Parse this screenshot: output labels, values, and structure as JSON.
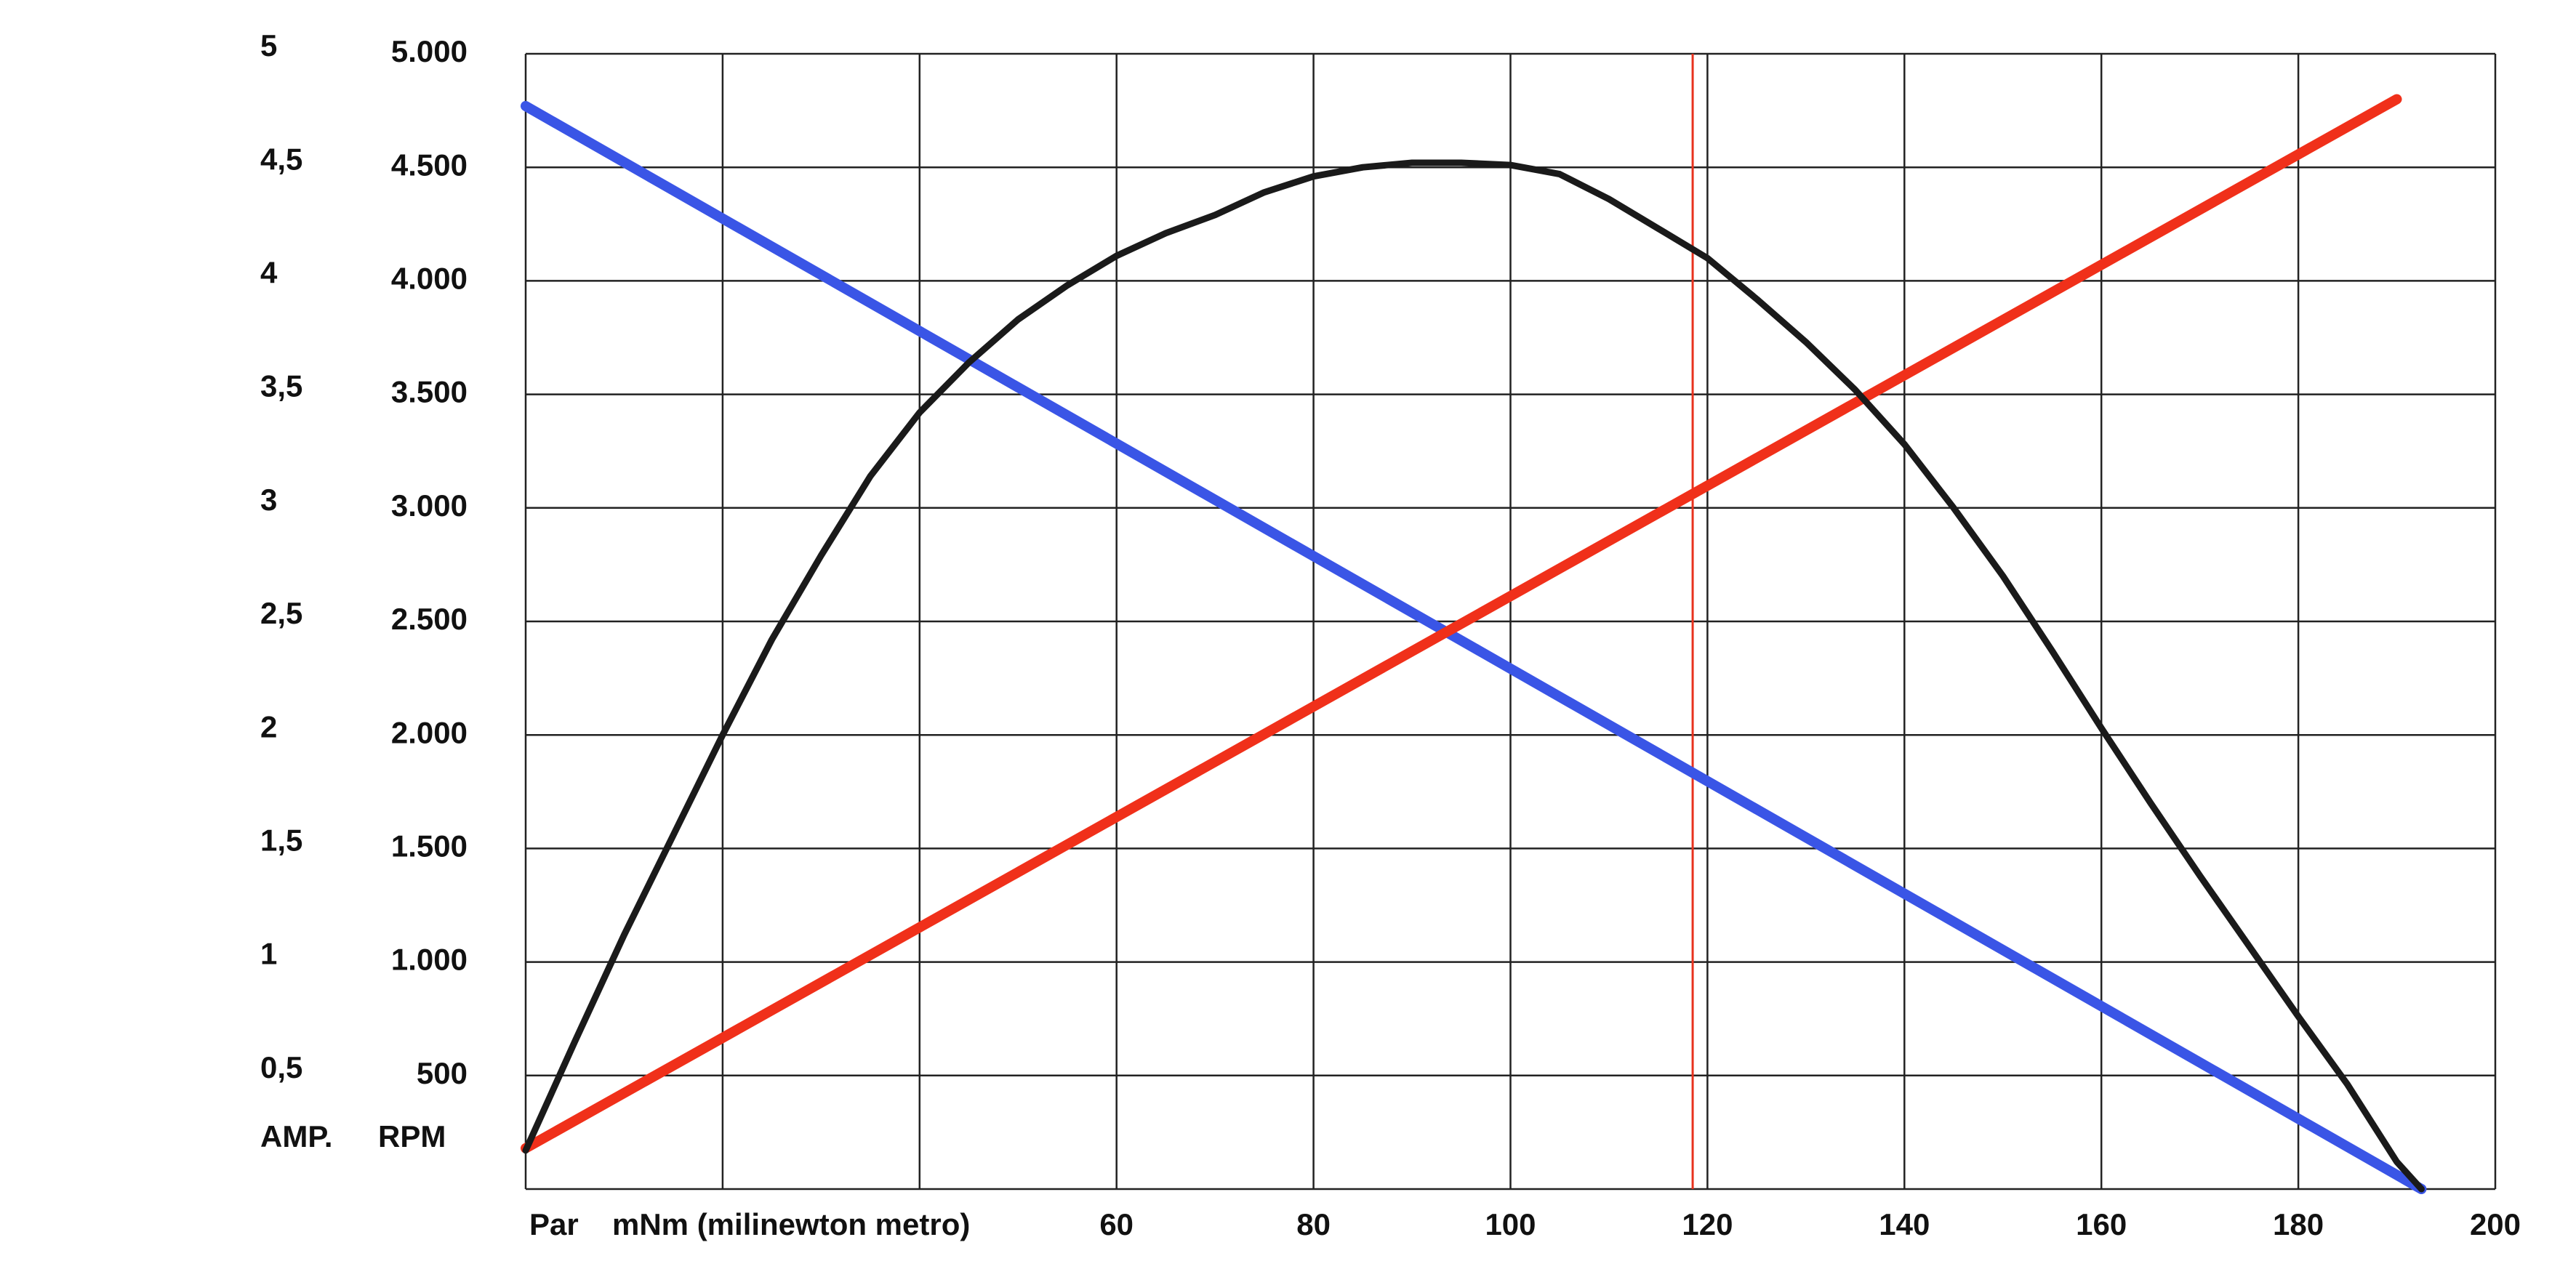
{
  "chart_data": {
    "type": "line",
    "title": "",
    "x_axis": {
      "unit_label": "Par",
      "label": "mNm (milinewton metro)",
      "min": 0,
      "max": 200,
      "gridlines": [
        0,
        20,
        40,
        60,
        80,
        100,
        120,
        140,
        160,
        180,
        200
      ],
      "tick_labels": [
        {
          "value": 60,
          "text": "60"
        },
        {
          "value": 80,
          "text": "80"
        },
        {
          "value": 100,
          "text": "100"
        },
        {
          "value": 120,
          "text": "120"
        },
        {
          "value": 140,
          "text": "140"
        },
        {
          "value": 160,
          "text": "160"
        },
        {
          "value": 180,
          "text": "180"
        },
        {
          "value": 200,
          "text": "200"
        }
      ]
    },
    "y_axis_amp": {
      "label": "AMP.",
      "min": 0,
      "max": 5,
      "tick_labels": [
        {
          "value": 0.5,
          "text": "0,5"
        },
        {
          "value": 1,
          "text": "1"
        },
        {
          "value": 1.5,
          "text": "1,5"
        },
        {
          "value": 2,
          "text": "2"
        },
        {
          "value": 2.5,
          "text": "2,5"
        },
        {
          "value": 3,
          "text": "3"
        },
        {
          "value": 3.5,
          "text": "3,5"
        },
        {
          "value": 4,
          "text": "4"
        },
        {
          "value": 4.5,
          "text": "4,5"
        },
        {
          "value": 5,
          "text": "5"
        }
      ]
    },
    "y_axis_rpm": {
      "label": "RPM",
      "min": 0,
      "max": 5000,
      "gridlines": [
        0,
        500,
        1000,
        1500,
        2000,
        2500,
        3000,
        3500,
        4000,
        4500,
        5000
      ],
      "tick_labels": [
        {
          "value": 500,
          "text": "500"
        },
        {
          "value": 1000,
          "text": "1.000"
        },
        {
          "value": 1500,
          "text": "1.500"
        },
        {
          "value": 2000,
          "text": "2.000"
        },
        {
          "value": 2500,
          "text": "2.500"
        },
        {
          "value": 3000,
          "text": "3.000"
        },
        {
          "value": 3500,
          "text": "3.500"
        },
        {
          "value": 4000,
          "text": "4.000"
        },
        {
          "value": 4500,
          "text": "4.500"
        },
        {
          "value": 5000,
          "text": "5.000"
        }
      ]
    },
    "grid": true,
    "reference_line": {
      "x": 118.5,
      "color": "#e8321e"
    },
    "series": [
      {
        "color": "#3a55e6",
        "axis": "rpm",
        "x": [
          0,
          192.5
        ],
        "y": [
          4770,
          0
        ]
      },
      {
        "color": "#f0301a",
        "axis": "rpm",
        "x": [
          0,
          190
        ],
        "y": [
          180,
          4800
        ]
      },
      {
        "color": "#1a1a1a",
        "axis": "rpm",
        "x": [
          0,
          5,
          10,
          15,
          20,
          25,
          30,
          35,
          40,
          45,
          50,
          55,
          60,
          65,
          70,
          75,
          80,
          85,
          90,
          95,
          100,
          105,
          110,
          115,
          120,
          125,
          130,
          135,
          140,
          145,
          150,
          155,
          160,
          165,
          170,
          175,
          180,
          185,
          190,
          192.5
        ],
        "y": [
          170,
          650,
          1120,
          1560,
          2000,
          2420,
          2790,
          3140,
          3420,
          3640,
          3830,
          3980,
          4110,
          4210,
          4290,
          4390,
          4460,
          4500,
          4520,
          4520,
          4510,
          4470,
          4360,
          4230,
          4100,
          3920,
          3730,
          3520,
          3280,
          3000,
          2700,
          2370,
          2030,
          1700,
          1380,
          1070,
          760,
          460,
          120,
          0
        ]
      }
    ]
  }
}
